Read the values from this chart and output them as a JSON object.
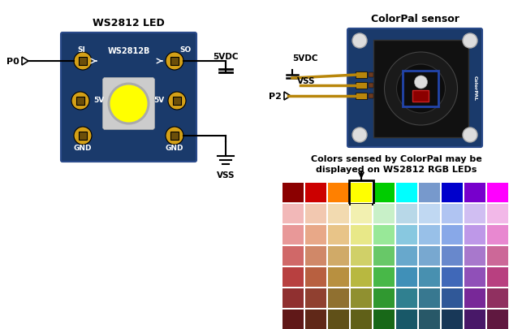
{
  "title_led": "WS2812 LED",
  "title_colorpal": "ColorPal sensor",
  "text_annotation": "Colors sensed by ColorPal may be\ndisplayed on WS2812 RGB LEDs",
  "bg_color": "#ffffff",
  "led_board_color": "#1a3a6b",
  "led_pad_color": "#d4a017",
  "led_pad_dark": "#6b4e0a",
  "led_center_gray": "#cccccc",
  "led_yellow": "#ffff00",
  "wire_color": "#000000",
  "colorpal_board_color": "#1a3a6b",
  "top_row_colors": [
    "#8b0000",
    "#cc0000",
    "#ff8000",
    "#ffff00",
    "#00cc00",
    "#00ffff",
    "#7799cc",
    "#0000cc",
    "#7700cc",
    "#ff00ff"
  ],
  "color_grid": [
    [
      "#f2b8b8",
      "#f2c8b0",
      "#f2dab0",
      "#f2f0b0",
      "#c8f0c8",
      "#b8d8e8",
      "#c0d8f2",
      "#b0c4f2",
      "#d0bef2",
      "#f2b8e8"
    ],
    [
      "#e89898",
      "#e8a888",
      "#e8c488",
      "#e8e888",
      "#98e898",
      "#88c8e0",
      "#98c0e8",
      "#88a8e8",
      "#be98e8",
      "#e888d0"
    ],
    [
      "#d06868",
      "#d08868",
      "#d0aa68",
      "#d0d068",
      "#68c868",
      "#68a8cc",
      "#78a8d0",
      "#6888cc",
      "#a878cc",
      "#cc6898"
    ],
    [
      "#b84040",
      "#b86040",
      "#b89040",
      "#b8b840",
      "#48b848",
      "#4090b8",
      "#4890b0",
      "#4068b8",
      "#9050b8",
      "#b84080"
    ],
    [
      "#903030",
      "#904030",
      "#907030",
      "#909030",
      "#309830",
      "#308090",
      "#387890",
      "#305898",
      "#782898",
      "#903060"
    ],
    [
      "#601818",
      "#602818",
      "#605018",
      "#606018",
      "#186818",
      "#185868",
      "#285868",
      "#183858",
      "#481868",
      "#601840"
    ],
    [
      "#380808",
      "#381508",
      "#383008",
      "#383808",
      "#083808",
      "#083040",
      "#183040",
      "#082040",
      "#280840",
      "#380818"
    ]
  ],
  "p0_label": "P0",
  "p2_label": "P2",
  "vss_label": "VSS",
  "vdc_label": "5VDC",
  "vss2_label": "VSS",
  "vdc2_label": "5VDC",
  "si_label": "SI",
  "so_label": "SO",
  "ws_label": "WS2812B",
  "gnd_label": "GND",
  "gnd2_label": "GND",
  "v5_label": "5V",
  "v5b_label": "5V"
}
